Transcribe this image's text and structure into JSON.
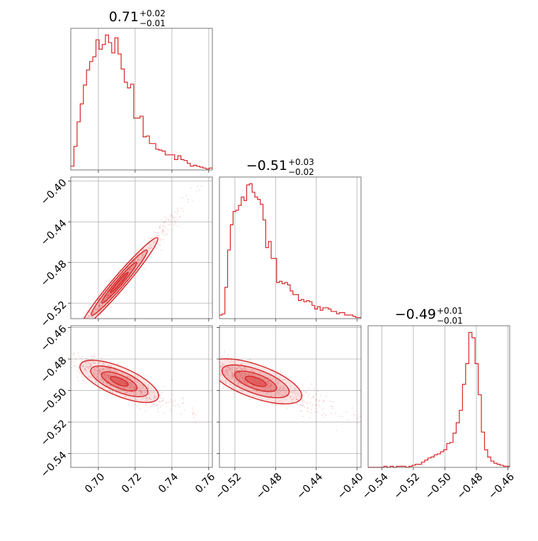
{
  "chart_data": {
    "type": "corner",
    "color": "#d62728",
    "parameters": [
      {
        "id": "p0",
        "title": {
          "median": "0.71",
          "upper": "+0.02",
          "lower": "−0.01"
        },
        "range": [
          0.685,
          0.762
        ],
        "ticks": [
          0.7,
          0.72,
          0.74,
          0.76
        ],
        "tick_labels": [
          "0.70",
          "0.72",
          "0.74",
          "0.76"
        ]
      },
      {
        "id": "p1",
        "title": {
          "median": "−0.51",
          "upper": "+0.03",
          "lower": "−0.02"
        },
        "range": [
          -0.5352,
          -0.396
        ],
        "ticks": [
          -0.52,
          -0.48,
          -0.44,
          -0.4
        ],
        "tick_labels": [
          "−0.52",
          "−0.48",
          "−0.44",
          "−0.40"
        ]
      },
      {
        "id": "p2",
        "title": {
          "median": "−0.49",
          "upper": "+0.01",
          "lower": "−0.01"
        },
        "range": [
          -0.5487,
          -0.4589
        ],
        "ticks": [
          -0.54,
          -0.52,
          -0.5,
          -0.48,
          -0.46
        ],
        "tick_labels": [
          "−0.54",
          "−0.52",
          "−0.50",
          "−0.48",
          "−0.46"
        ]
      }
    ],
    "histograms": [
      {
        "param": 0,
        "counts": [
          4,
          25,
          51,
          70,
          90,
          106,
          115,
          120,
          138,
          128,
          133,
          143,
          135,
          124,
          140,
          123,
          107,
          93,
          87,
          91,
          55,
          55,
          57,
          35,
          36,
          28,
          28,
          22,
          21,
          20,
          16,
          16,
          16,
          11,
          15,
          11,
          10,
          7,
          4,
          5,
          4,
          3,
          2,
          1,
          2
        ]
      },
      {
        "param": 1,
        "counts": [
          3,
          4,
          26,
          57,
          78,
          89,
          90,
          94,
          101,
          98,
          111,
          112,
          105,
          101,
          99,
          95,
          82,
          59,
          64,
          50,
          50,
          30,
          31,
          29,
          30,
          28,
          23,
          20,
          20,
          15,
          16,
          14,
          15,
          14,
          11,
          8,
          10,
          7,
          9,
          9,
          8,
          6,
          6,
          4,
          5,
          5,
          3,
          3,
          3,
          2,
          1,
          1
        ]
      },
      {
        "param": 2,
        "counts": [
          0,
          0,
          0,
          0,
          0,
          1,
          0,
          1,
          0,
          1,
          1,
          1,
          0,
          1,
          2,
          3,
          3,
          5,
          7,
          9,
          10,
          12,
          13,
          15,
          17,
          23,
          24,
          33,
          43,
          55,
          80,
          100,
          130,
          125,
          100,
          70,
          34,
          17,
          10,
          6,
          4,
          3,
          2,
          1,
          1
        ]
      }
    ],
    "joint": [
      {
        "x_param": 0,
        "y_param": 1,
        "dims": [
          0,
          1
        ],
        "mean": [
          0.707,
          -0.509
        ],
        "std": [
          0.0125,
          0.0268
        ],
        "corr": 0.985
      },
      {
        "x_param": 0,
        "y_param": 2,
        "dims": [
          0,
          2
        ],
        "mean": [
          0.707,
          -0.492
        ],
        "std": [
          0.0125,
          0.0072
        ],
        "corr": -0.86
      },
      {
        "x_param": 1,
        "y_param": 2,
        "dims": [
          1,
          2
        ],
        "mean": [
          -0.509,
          -0.492
        ],
        "std": [
          0.0268,
          0.0072
        ],
        "corr": -0.86
      }
    ],
    "grid": true
  }
}
